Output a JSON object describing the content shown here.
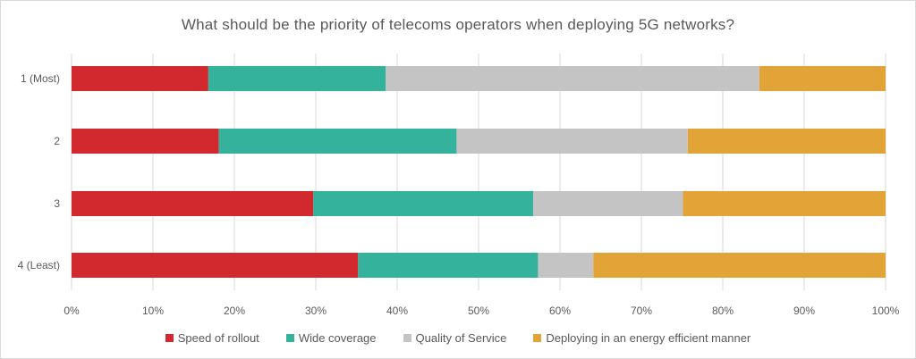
{
  "chart_data": {
    "type": "bar",
    "orientation": "horizontal",
    "stacked": true,
    "title": "What should be the priority of telecoms operators when deploying 5G networks?",
    "categories": [
      "1 (Most)",
      "2",
      "3",
      "4 (Least)"
    ],
    "series": [
      {
        "name": "Speed of rollout",
        "color": "#d2292f",
        "values": [
          16.8,
          18.1,
          29.7,
          35.2
        ]
      },
      {
        "name": "Wide coverage",
        "color": "#35b29c",
        "values": [
          21.8,
          29.2,
          27.0,
          22.1
        ]
      },
      {
        "name": "Quality of Service",
        "color": "#c4c4c4",
        "values": [
          45.9,
          28.4,
          18.4,
          6.8
        ]
      },
      {
        "name": "Deploying in an energy efficient manner",
        "color": "#e2a437",
        "values": [
          15.5,
          24.3,
          24.9,
          35.9
        ]
      }
    ],
    "xlim": [
      0,
      100
    ],
    "xticks": [
      "0%",
      "10%",
      "20%",
      "30%",
      "40%",
      "50%",
      "60%",
      "70%",
      "80%",
      "90%",
      "100%"
    ],
    "grid": true,
    "legend": "bottom"
  }
}
